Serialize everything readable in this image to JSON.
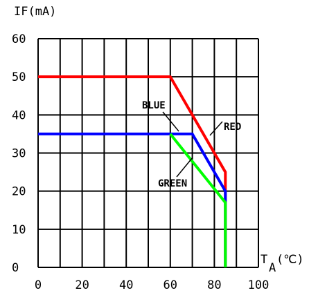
{
  "chart_data": {
    "type": "line",
    "ylabel": "IF(mA)",
    "xlabel_main": "T",
    "xlabel_sub": "A",
    "xlabel_unit": "(℃)",
    "xlim": [
      0,
      100
    ],
    "ylim": [
      0,
      60
    ],
    "x_ticks": [
      "0",
      "20",
      "40",
      "60",
      "80",
      "100"
    ],
    "y_ticks": [
      "0",
      "10",
      "20",
      "30",
      "40",
      "50",
      "60"
    ],
    "grid": true,
    "series": [
      {
        "name": "RED",
        "color": "#ff0000",
        "points": [
          [
            0,
            50
          ],
          [
            60,
            50
          ],
          [
            85,
            25
          ],
          [
            85,
            0
          ]
        ]
      },
      {
        "name": "BLUE",
        "color": "#0000ff",
        "points": [
          [
            0,
            35
          ],
          [
            70,
            35
          ],
          [
            85,
            20
          ],
          [
            85,
            0
          ]
        ]
      },
      {
        "name": "GREEN",
        "color": "#00ff00",
        "points": [
          [
            60,
            35
          ],
          [
            85,
            17
          ],
          [
            85,
            0
          ]
        ]
      }
    ]
  }
}
